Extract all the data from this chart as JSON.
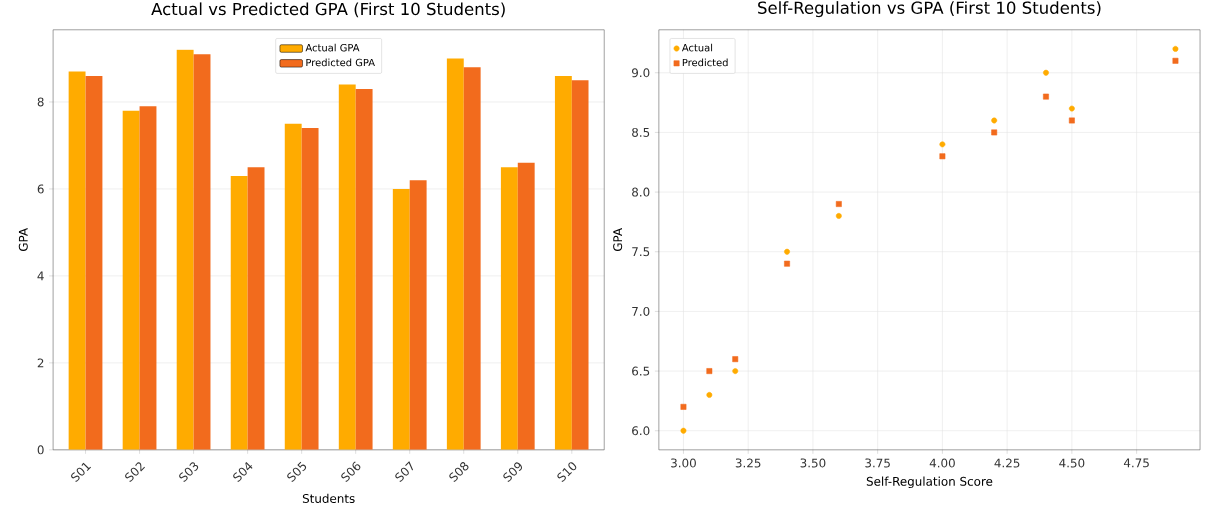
{
  "chart_data": [
    {
      "type": "bar",
      "title": "Actual vs Predicted GPA (First 10 Students)",
      "xlabel": "Students",
      "ylabel": "GPA",
      "categories": [
        "S01",
        "S02",
        "S03",
        "S04",
        "S05",
        "S06",
        "S07",
        "S08",
        "S09",
        "S10"
      ],
      "series": [
        {
          "name": "Actual GPA",
          "color": "#ffab00",
          "values": [
            8.7,
            7.8,
            9.2,
            6.3,
            7.5,
            8.4,
            6.0,
            9.0,
            6.5,
            8.6
          ]
        },
        {
          "name": "Predicted GPA",
          "color": "#f26b1d",
          "values": [
            8.6,
            7.9,
            9.1,
            6.5,
            7.4,
            8.3,
            6.2,
            8.8,
            6.6,
            8.5
          ]
        }
      ],
      "ylim": [
        0,
        9.66
      ],
      "yticks": [
        0,
        2,
        4,
        6,
        8
      ],
      "grid": true,
      "legend": "top"
    },
    {
      "type": "scatter",
      "title": "Self-Regulation vs GPA (First 10 Students)",
      "xlabel": "Self-Regulation Score",
      "ylabel": "GPA",
      "series": [
        {
          "name": "Actual",
          "color": "#ffab00",
          "marker": "circle",
          "x": [
            4.5,
            3.6,
            4.9,
            3.1,
            3.4,
            4.0,
            3.0,
            4.4,
            3.2,
            4.2
          ],
          "values": [
            8.7,
            7.8,
            9.2,
            6.3,
            7.5,
            8.4,
            6.0,
            9.0,
            6.5,
            8.6
          ]
        },
        {
          "name": "Predicted",
          "color": "#f26b1d",
          "marker": "square",
          "x": [
            4.5,
            3.6,
            4.9,
            3.1,
            3.4,
            4.0,
            3.0,
            4.4,
            3.2,
            4.2
          ],
          "values": [
            8.6,
            7.9,
            9.1,
            6.5,
            7.4,
            8.3,
            6.2,
            8.8,
            6.6,
            8.5
          ]
        }
      ],
      "xlim": [
        2.905,
        4.995
      ],
      "xticks": [
        {
          "value": 3.0,
          "label": "3.00"
        },
        {
          "value": 3.25,
          "label": "3.25"
        },
        {
          "value": 3.5,
          "label": "3.50"
        },
        {
          "value": 3.75,
          "label": "3.75"
        },
        {
          "value": 4.0,
          "label": "4.00"
        },
        {
          "value": 4.25,
          "label": "4.25"
        },
        {
          "value": 4.5,
          "label": "4.50"
        },
        {
          "value": 4.75,
          "label": "4.75"
        }
      ],
      "ylim": [
        5.84,
        9.36
      ],
      "yticks": [
        {
          "value": 6.0,
          "label": "6.0"
        },
        {
          "value": 6.5,
          "label": "6.5"
        },
        {
          "value": 7.0,
          "label": "7.0"
        },
        {
          "value": 7.5,
          "label": "7.5"
        },
        {
          "value": 8.0,
          "label": "8.0"
        },
        {
          "value": 8.5,
          "label": "8.5"
        },
        {
          "value": 9.0,
          "label": "9.0"
        }
      ],
      "grid": true,
      "legend": "top left"
    }
  ]
}
